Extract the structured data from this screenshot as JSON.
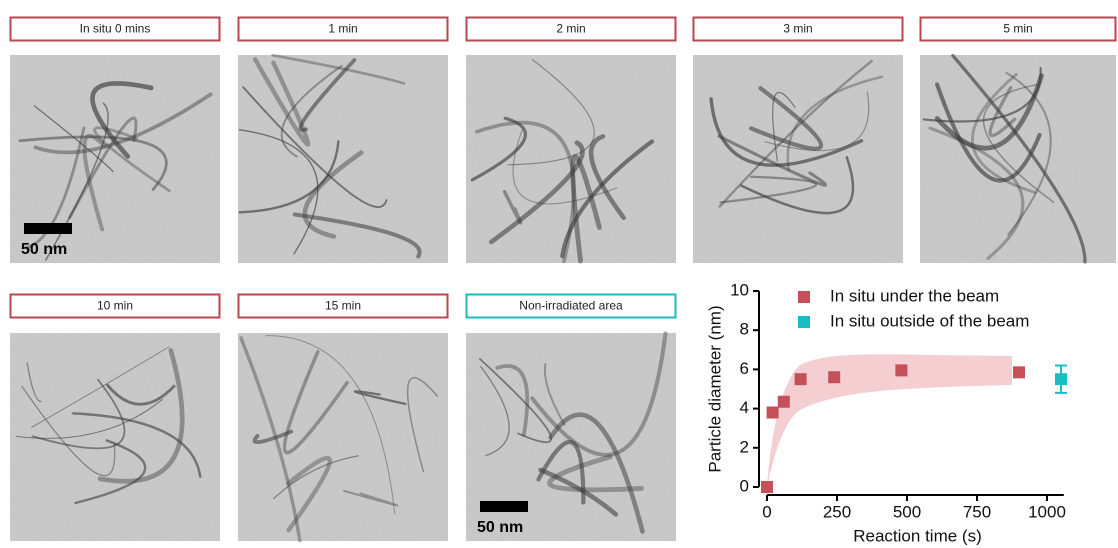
{
  "panels": [
    {
      "label": "In situ 0 mins",
      "scale_bar": "50 nm",
      "border_color": "#b9474f"
    },
    {
      "label": "1 min",
      "border_color": "#b9474f"
    },
    {
      "label": "2 min",
      "border_color": "#b9474f"
    },
    {
      "label": "3 min",
      "border_color": "#b9474f"
    },
    {
      "label": "5 min",
      "border_color": "#b9474f"
    },
    {
      "label": "10 min",
      "border_color": "#b9474f"
    },
    {
      "label": "15 min",
      "border_color": "#b9474f"
    },
    {
      "label": "Non-irradiated area",
      "scale_bar": "50 nm",
      "border_color": "#1bb8c0"
    }
  ],
  "chart_data": {
    "type": "scatter",
    "xlabel": "Reaction time (s)",
    "ylabel": "Particle diameter (nm)",
    "xlim": [
      0,
      1060
    ],
    "xticks": [
      0,
      250,
      500,
      750,
      1000
    ],
    "ylim": [
      0,
      10
    ],
    "yticks": [
      0,
      2,
      4,
      6,
      8,
      10
    ],
    "series": [
      {
        "name": "In situ under the beam",
        "color": "#c5505a",
        "x": [
          0,
          20,
          60,
          120,
          240,
          480,
          900
        ],
        "values": [
          0,
          3.8,
          4.35,
          5.5,
          5.6,
          5.95,
          5.85
        ]
      },
      {
        "name": "In situ outside of the beam",
        "color": "#17bfc4",
        "x": [
          1050
        ],
        "values": [
          5.5
        ],
        "errors": [
          0.7
        ]
      }
    ]
  }
}
